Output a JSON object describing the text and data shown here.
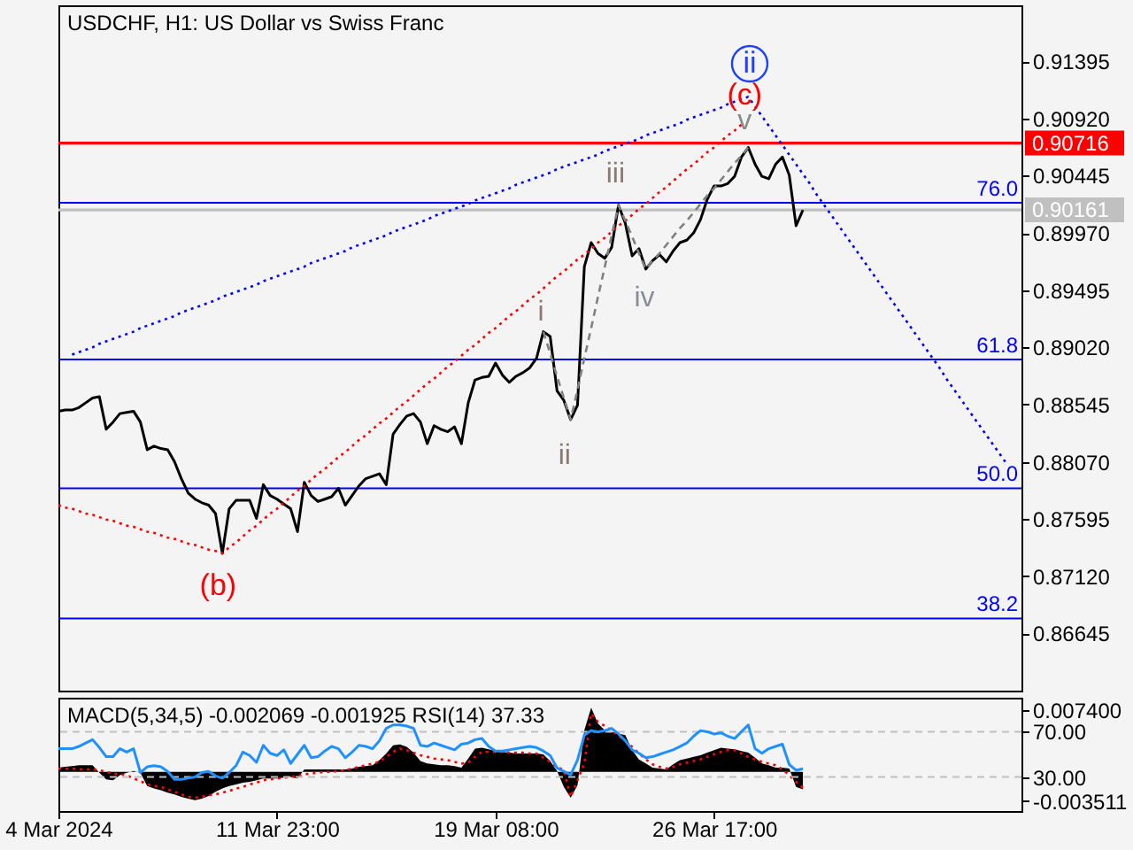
{
  "chart_data": [
    {
      "type": "line",
      "title": "USDCHF, H1:  US Dollar vs Swiss Franc",
      "tick_labels": "y",
      "categories": [
        null,
        null,
        null,
        null,
        null,
        null,
        null,
        null,
        null,
        null,
        null,
        null,
        null,
        null,
        null,
        null,
        null,
        null,
        null,
        null,
        null,
        null,
        null,
        null,
        null,
        null,
        null,
        null,
        null,
        null,
        null,
        null,
        null,
        null,
        null,
        null,
        null,
        null,
        null,
        null,
        null,
        null,
        null,
        null,
        null,
        null,
        null,
        null,
        null,
        null,
        null,
        null,
        null,
        null,
        null,
        null,
        null,
        null,
        null,
        null,
        null,
        null,
        null,
        null,
        null,
        null,
        null,
        null,
        null,
        null,
        null,
        null,
        null,
        null,
        null,
        null,
        null,
        null,
        null,
        null,
        null,
        null,
        null,
        null,
        null,
        null,
        null,
        null,
        null,
        null,
        null,
        null,
        null,
        null,
        null,
        null,
        null,
        null,
        null,
        null,
        null,
        null,
        null,
        null,
        null,
        null,
        null,
        null,
        null,
        null,
        null,
        null,
        null,
        null,
        null,
        null,
        null,
        null,
        null,
        null,
        null,
        null,
        null,
        null,
        null,
        null,
        null,
        null,
        null,
        null,
        null,
        null,
        null,
        null,
        null,
        null,
        null,
        null,
        null,
        null,
        null,
        null
      ],
      "ylim": [
        0.8617,
        0.9186
      ],
      "yticks": [
        0.91395,
        {
          "value": 0.9092,
          "label": "0.90920"
        },
        0.90445,
        {
          "value": 0.8997,
          "label": "0.89970"
        },
        0.89495,
        {
          "value": 0.8902,
          "label": "0.89020"
        },
        0.88545,
        {
          "value": 0.8807,
          "label": "0.88070"
        },
        0.87595,
        {
          "value": 0.8712,
          "label": "0.87120"
        },
        0.86645
      ],
      "series": [
        {
          "color": "#000000",
          "values": [
            0.8849,
            0.885,
            0.885,
            0.8852,
            0.8856,
            0.886,
            0.8861,
            0.8834,
            0.884,
            0.8847,
            0.8848,
            0.8849,
            0.884,
            0.8817,
            0.882,
            0.8818,
            0.8817,
            0.8807,
            0.8793,
            0.8781,
            0.8776,
            0.8773,
            0.8771,
            0.8764,
            0.8731,
            0.8768,
            0.8775,
            0.8775,
            0.8775,
            0.876,
            0.8788,
            0.8779,
            0.8776,
            0.8772,
            0.8768,
            0.8749,
            0.879,
            0.8779,
            0.8774,
            0.8776,
            0.8778,
            0.8785,
            0.8771,
            0.8779,
            0.8787,
            0.8793,
            0.8795,
            0.8797,
            0.8788,
            0.883,
            0.8838,
            0.8845,
            0.8847,
            0.884,
            0.8822,
            0.8837,
            0.8834,
            0.8832,
            0.8836,
            0.8822,
            0.8856,
            0.8875,
            0.8877,
            0.8878,
            0.8889,
            0.8879,
            0.8873,
            0.8878,
            0.8881,
            0.8885,
            0.8893,
            0.8915,
            0.8911,
            0.8866,
            0.8858,
            0.8842,
            0.8854,
            0.8969,
            0.8989,
            0.898,
            0.8976,
            0.8985,
            0.902,
            0.9005,
            0.8978,
            0.8984,
            0.8967,
            0.8974,
            0.8979,
            0.8973,
            0.8982,
            0.8989,
            0.8991,
            0.8997,
            0.9008,
            0.9025,
            0.9036,
            0.9036,
            0.9038,
            0.9044,
            0.906,
            0.9068,
            0.9054,
            0.9044,
            0.9042,
            0.9054,
            0.906,
            0.9045,
            0.9003,
            0.9016,
            null,
            null,
            null,
            null,
            null,
            null,
            null,
            null,
            null,
            null,
            null,
            null,
            null,
            null,
            null,
            null,
            null,
            null,
            null,
            null,
            null,
            null,
            null,
            null,
            null,
            null,
            null,
            null,
            null,
            null,
            null,
            null
          ]
        },
        {
          "color": "#0000ff",
          "line_style": "dotted",
          "values": [
            null,
            null,
            0.8896,
            0.8898,
            0.89,
            0.8902,
            0.8905,
            0.8907,
            0.8909,
            0.8911,
            0.8913,
            0.8915,
            0.8918,
            0.892,
            0.8922,
            0.8924,
            0.8926,
            0.8928,
            0.8931,
            0.8933,
            0.8935,
            0.8937,
            0.8939,
            0.8941,
            0.8944,
            0.8946,
            0.8948,
            0.895,
            0.8952,
            0.8954,
            0.8957,
            0.8959,
            0.8961,
            0.8963,
            0.8965,
            0.8967,
            0.8969,
            0.8972,
            0.8974,
            0.8976,
            0.8978,
            0.898,
            0.8982,
            0.8985,
            0.8987,
            0.8989,
            0.8991,
            0.8993,
            0.8995,
            0.8998,
            0.9,
            0.9002,
            0.9004,
            0.9006,
            0.9008,
            0.9011,
            0.9013,
            0.9015,
            0.9017,
            0.9019,
            0.9021,
            0.9024,
            0.9026,
            0.9028,
            0.903,
            0.9032,
            0.9034,
            0.9037,
            0.9039,
            0.9041,
            0.9043,
            0.9045,
            0.9047,
            0.905,
            0.9052,
            0.9054,
            0.9056,
            0.9058,
            0.906,
            0.9062,
            0.9065,
            0.9067,
            0.9069,
            0.9071,
            0.9073,
            0.9075,
            0.9078,
            0.908,
            0.9082,
            0.9084,
            0.9086,
            0.9088,
            0.9091,
            0.9093,
            0.9095,
            0.9097,
            0.9099,
            0.9101,
            0.9104,
            0.9106,
            0.9108,
            0.911,
            0.9102,
            0.9094,
            0.9086,
            0.9078,
            0.907,
            0.9062,
            0.9054,
            0.9046,
            0.9038,
            0.9029,
            0.9021,
            0.9013,
            0.9005,
            0.8997,
            0.8989,
            0.8981,
            0.8973,
            0.8965,
            0.8957,
            0.8949,
            0.8941,
            0.8933,
            0.8925,
            0.8917,
            0.8909,
            0.8901,
            0.8893,
            0.8885,
            0.8876,
            0.8868,
            0.886,
            0.8852,
            0.8844,
            0.8836,
            0.8828,
            0.882,
            0.8812,
            0.8804,
            null,
            null
          ]
        },
        {
          "color": "#ff0000",
          "line_style": "dotted",
          "values": [
            0.8771,
            0.8769,
            0.8768,
            0.8766,
            0.8764,
            0.8763,
            0.8761,
            0.8759,
            0.8758,
            0.8756,
            0.8754,
            0.8753,
            0.8751,
            0.8749,
            0.8748,
            0.8746,
            0.8744,
            0.8743,
            0.8741,
            0.8739,
            0.8738,
            0.8736,
            0.8734,
            0.8733,
            0.8731,
            0.8736,
            0.874,
            0.8745,
            0.875,
            0.8754,
            0.8759,
            0.8764,
            0.8768,
            0.8773,
            0.8778,
            0.8783,
            0.8787,
            0.8792,
            0.8797,
            0.8801,
            0.8806,
            0.8811,
            0.8815,
            0.882,
            0.8825,
            0.8829,
            0.8834,
            0.8839,
            0.8843,
            0.8848,
            0.8853,
            0.8857,
            0.8862,
            0.8867,
            0.8872,
            0.8876,
            0.8881,
            0.8886,
            0.889,
            0.8895,
            0.89,
            0.8904,
            0.8909,
            0.8914,
            0.8918,
            0.8923,
            0.8928,
            0.8932,
            0.8937,
            0.8942,
            0.8946,
            0.8951,
            0.8956,
            0.8961,
            0.8965,
            0.897,
            0.8975,
            0.8979,
            0.8984,
            0.8989,
            0.8993,
            0.8998,
            0.9003,
            0.9007,
            0.9012,
            0.9017,
            0.9021,
            0.9026,
            0.9031,
            0.9035,
            0.904,
            0.9045,
            0.905,
            0.9054,
            0.9059,
            0.9064,
            0.9068,
            0.9073,
            0.9078,
            0.9082,
            0.9087,
            null,
            null,
            null,
            null,
            null,
            null,
            null,
            null,
            null,
            null,
            null,
            null,
            null,
            null,
            null,
            null,
            null,
            null,
            null,
            null,
            null,
            null,
            null,
            null,
            null,
            null,
            null,
            null,
            null,
            null,
            null,
            null,
            null,
            null,
            null,
            null,
            null,
            null,
            null,
            null,
            null
          ]
        },
        {
          "color": "#808080",
          "line_style": "dashed",
          "values": [
            null,
            null,
            null,
            null,
            null,
            null,
            null,
            null,
            null,
            null,
            null,
            null,
            null,
            null,
            null,
            null,
            null,
            null,
            null,
            null,
            null,
            null,
            null,
            null,
            null,
            null,
            null,
            null,
            null,
            null,
            null,
            null,
            null,
            null,
            null,
            null,
            null,
            null,
            null,
            null,
            null,
            null,
            null,
            null,
            null,
            null,
            null,
            null,
            null,
            null,
            null,
            null,
            null,
            null,
            null,
            null,
            null,
            null,
            null,
            null,
            null,
            null,
            null,
            null,
            null,
            null,
            null,
            null,
            null,
            null,
            null,
            0.8915,
            0.8897,
            0.8878,
            0.886,
            0.8842,
            0.8867,
            0.8893,
            0.8918,
            0.8944,
            0.8969,
            0.8995,
            0.902,
            0.9007,
            0.8994,
            0.898,
            0.8967,
            0.8974,
            0.898,
            0.8987,
            0.8994,
            0.9001,
            0.9007,
            0.9014,
            0.9021,
            0.9028,
            0.9034,
            0.9041,
            0.9048,
            0.9055,
            0.9061,
            0.9068,
            null,
            null,
            null,
            null,
            null,
            null,
            null,
            null,
            null,
            null,
            null,
            null,
            null,
            null,
            null,
            null,
            null,
            null,
            null,
            null,
            null,
            null,
            null,
            null,
            null,
            null,
            null,
            null,
            null,
            null,
            null,
            null,
            null,
            null,
            null,
            null,
            null,
            null,
            null,
            null
          ]
        }
      ],
      "ref_lines": [
        {
          "axis": "y",
          "value": 0.90716,
          "label": "0.90716",
          "color": "#ff0000"
        },
        {
          "axis": "y",
          "value": 0.90161,
          "label": "0.90161",
          "color": "#c0c0c0"
        },
        {
          "axis": "y",
          "value": 0.9022,
          "color": "#0000ff"
        },
        {
          "axis": "y",
          "value": 0.8892,
          "color": "#0000ff"
        },
        {
          "axis": "y",
          "value": 0.8785,
          "color": "#0000ff"
        },
        {
          "axis": "y",
          "value": 0.8677,
          "color": "#0000ff"
        }
      ],
      "annotations": [
        "ii",
        "(c)",
        "v",
        "iii",
        "iv",
        "i",
        "ii",
        "(b)",
        {
          "text": "76.0",
          "y": 0.9022
        },
        {
          "text": "61.8",
          "y": 0.8892
        },
        {
          "text": "50.0",
          "y": 0.8785
        },
        {
          "text": "38.2",
          "y": 0.8677
        }
      ]
    },
    {
      "type": "line",
      "title": "MACD(5,34,5) -0.002069 -0.001925 RSI(14) 37.33",
      "categories": [
        "4 Mar 2024",
        null,
        null,
        null,
        null,
        null,
        null,
        null,
        null,
        null,
        null,
        null,
        null,
        null,
        null,
        null,
        null,
        null,
        null,
        null,
        null,
        null,
        null,
        null,
        null,
        null,
        null,
        null,
        null,
        null,
        null,
        null,
        "11 Mar 23:00",
        null,
        null,
        null,
        null,
        null,
        null,
        null,
        null,
        null,
        null,
        null,
        null,
        null,
        null,
        null,
        null,
        null,
        null,
        null,
        null,
        null,
        null,
        null,
        null,
        null,
        null,
        null,
        null,
        null,
        null,
        null,
        "19 Mar 08:00",
        null,
        null,
        null,
        null,
        null,
        null,
        null,
        null,
        null,
        null,
        null,
        null,
        null,
        null,
        null,
        null,
        null,
        null,
        null,
        null,
        null,
        null,
        null,
        null,
        null,
        null,
        null,
        null,
        null,
        null,
        null,
        "26 Mar 17:00",
        null,
        null,
        null,
        null,
        null,
        null,
        null,
        null,
        null,
        null,
        null,
        null,
        null,
        null,
        null,
        null,
        null,
        null,
        null,
        null,
        null,
        null,
        null,
        null,
        null,
        null,
        null,
        null,
        null,
        null,
        null,
        null,
        null,
        null,
        null,
        null,
        null,
        null,
        null,
        null,
        null,
        null,
        null,
        null,
        null
      ],
      "ylim": [
        -0.0047,
        0.0089
      ],
      "yticks": [
        {
          "value": 0.0074,
          "label": "0.007400"
        },
        -0.003511
      ],
      "y2lim": [
        0,
        100
      ],
      "y2ticks": [
        {
          "value": 70,
          "label": "70.00"
        },
        {
          "value": 30,
          "label": "30.00"
        }
      ],
      "series": [
        {
          "type": "area",
          "color": "#000000",
          "values": [
            0.0005,
            0.0006,
            0.0007,
            0.0008,
            0.0008,
            0.0008,
            -0.0001,
            -0.0009,
            -0.001,
            -0.0004,
            -0.0001,
            0.0001,
            -0.0001,
            -0.0017,
            -0.002,
            -0.0022,
            -0.0025,
            -0.0027,
            -0.003,
            -0.0032,
            -0.0034,
            -0.0032,
            -0.0029,
            -0.0024,
            -0.002,
            -0.0017,
            -0.0015,
            -0.0013,
            -0.0012,
            -0.001,
            -0.0008,
            -0.0008,
            -0.0008,
            -0.0007,
            -0.0006,
            -0.0008,
            0.0003,
            0.0003,
            0.0003,
            0.0003,
            0.0003,
            0.0003,
            0.0003,
            0.0004,
            0.0006,
            0.0007,
            0.0008,
            0.0014,
            0.0022,
            0.0032,
            0.0033,
            0.003,
            0.0023,
            0.0013,
            0.001,
            0.0009,
            0.0008,
            0.0008,
            0.0007,
            0.0005,
            0.0016,
            0.0028,
            0.0029,
            0.0027,
            0.0025,
            0.0024,
            0.0023,
            0.0022,
            0.0022,
            0.0022,
            0.0022,
            0.0021,
            0.0013,
            0.0001,
            -0.0018,
            -0.0031,
            -0.0016,
            0.005,
            0.0077,
            0.0058,
            0.005,
            0.0048,
            0.0046,
            0.0044,
            0.0026,
            0.0015,
            0.001,
            0.0005,
            0.0004,
            0.0003,
            0.0009,
            0.0014,
            0.0016,
            0.0018,
            0.002,
            0.0023,
            0.0026,
            0.0029,
            0.0028,
            0.0027,
            0.0025,
            0.0023,
            0.0017,
            0.001,
            0.0008,
            0.0005,
            0.0005,
            0.0004,
            -0.0018,
            -0.0021,
            null,
            null,
            null,
            null,
            null,
            null,
            null,
            null,
            null,
            null,
            null,
            null,
            null,
            null,
            null,
            null,
            null,
            null,
            null,
            null,
            null,
            null,
            null,
            null,
            null,
            null,
            null,
            null,
            null,
            null,
            null,
            null
          ]
        },
        {
          "type": "line",
          "color": "#ff0000",
          "line_style": "dotted",
          "values": [
            0.0004,
            0.0004,
            0.0004,
            0.0003,
            0.0003,
            0.0003,
            0.0002,
            0,
            -0.0002,
            -0.0003,
            -0.0004,
            -0.0008,
            -0.0011,
            -0.0015,
            -0.0017,
            -0.0018,
            -0.0021,
            -0.0024,
            -0.0027,
            -0.003,
            -0.0031,
            -0.003,
            -0.0028,
            -0.0027,
            -0.0025,
            -0.0023,
            -0.002,
            -0.0018,
            -0.0015,
            -0.0013,
            -0.001,
            -0.0009,
            -0.0008,
            -0.0007,
            -0.0006,
            -0.0005,
            -0.0003,
            -0.0002,
            -0.0001,
            0,
            0,
            0.0001,
            0.0002,
            0.0004,
            0.0006,
            0.0008,
            0.001,
            0.0012,
            0.0018,
            0.0024,
            0.0028,
            0.0026,
            0.0023,
            0.002,
            0.0018,
            0.0016,
            0.0015,
            0.0014,
            0.0012,
            0.001,
            0.0011,
            0.0018,
            0.0024,
            0.0024,
            0.0024,
            0.0024,
            0.0023,
            0.0023,
            0.0023,
            0.0022,
            0.0022,
            0.0017,
            0.0012,
            0.0006,
            0.0002,
            -0.003,
            -0.001,
            0.001,
            0.007,
            0.006,
            0.0055,
            0.005,
            0.0043,
            0.0037,
            0.003,
            0.0022,
            0.0015,
            0.0009,
            0.0006,
            0.0004,
            0.0006,
            0.0009,
            0.0011,
            0.0013,
            0.0015,
            0.0018,
            0.0021,
            0.0024,
            0.0026,
            0.0026,
            0.0022,
            0.0018,
            0.0015,
            0.0012,
            0.001,
            0.0008,
            0.0003,
            -0.0004,
            -0.0012,
            -0.0019,
            null,
            null,
            null,
            null,
            null,
            null,
            null,
            null,
            null,
            null,
            null,
            null,
            null,
            null,
            null,
            null,
            null,
            null,
            null,
            null,
            null,
            null,
            null,
            null,
            null,
            null,
            null,
            null,
            null,
            null,
            null,
            null
          ]
        },
        {
          "type": "line",
          "color": "#1e90ff",
          "axis": "y2",
          "values": [
            55,
            55,
            55,
            57,
            60,
            63,
            56,
            48,
            48,
            55,
            52,
            55,
            34,
            39,
            40,
            39,
            35,
            28,
            28,
            29,
            30,
            34,
            35,
            31,
            29,
            34,
            40,
            52,
            49,
            43,
            58,
            51,
            49,
            54,
            42,
            50,
            58,
            47,
            48,
            53,
            57,
            55,
            47,
            52,
            58,
            57,
            55,
            62,
            73,
            76,
            76,
            75,
            73,
            58,
            57,
            60,
            58,
            56,
            54,
            59,
            60,
            63,
            64,
            57,
            53,
            53,
            54,
            55,
            56,
            57,
            56,
            53,
            49,
            38,
            35,
            32,
            45,
            67,
            71,
            70,
            71,
            73,
            68,
            62,
            54,
            51,
            47,
            48,
            50,
            52,
            54,
            57,
            60,
            66,
            71,
            70,
            68,
            69,
            66,
            64,
            70,
            76,
            55,
            51,
            55,
            57,
            59,
            41,
            36,
            37.33,
            null,
            null,
            null,
            null,
            null,
            null,
            null,
            null,
            null,
            null,
            null,
            null,
            null,
            null,
            null,
            null,
            null,
            null,
            null,
            null,
            null,
            null,
            null,
            null,
            null,
            null,
            null,
            null,
            null,
            null,
            null,
            null
          ]
        }
      ],
      "ref_lines": [
        {
          "axis": "y2",
          "value": 70,
          "color": "#c0c0c0",
          "line_style": "dashed"
        },
        {
          "axis": "y2",
          "value": 30,
          "color": "#c0c0c0",
          "line_style": "dashed"
        }
      ]
    }
  ]
}
